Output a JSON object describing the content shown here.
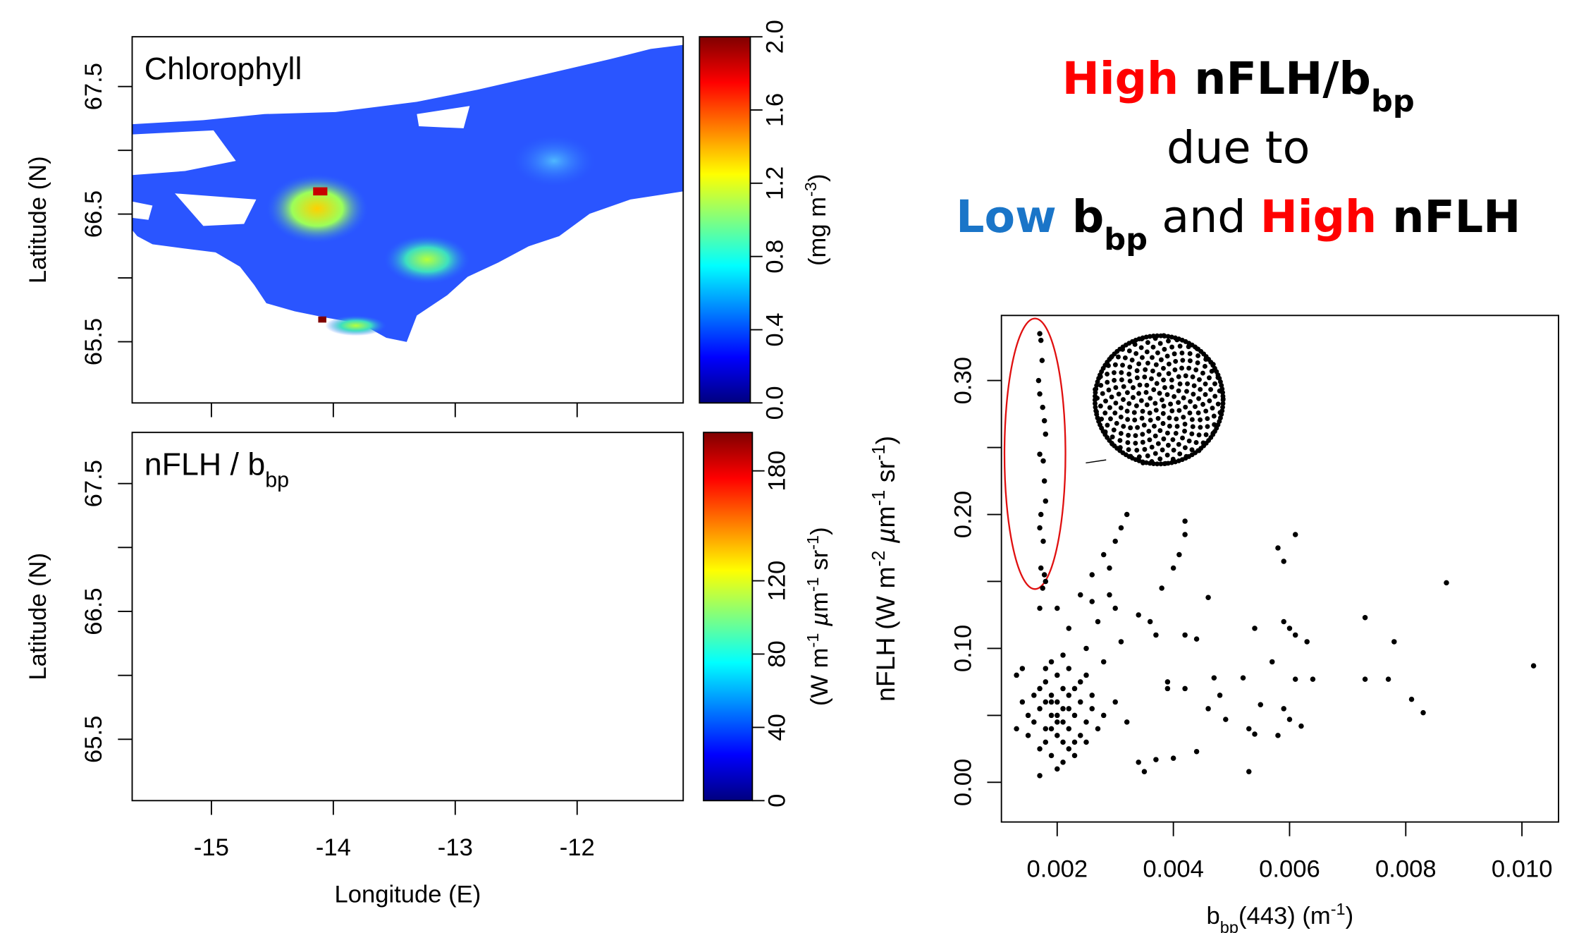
{
  "headline": [
    [
      {
        "text": "High",
        "color": "#ff0000",
        "bold": true
      },
      {
        "text": " nFLH/b",
        "bold": true
      },
      {
        "text": "bp",
        "sub": true,
        "bold": true
      }
    ],
    [
      {
        "text": "due to"
      }
    ],
    [
      {
        "text": "Low",
        "color": "#1a75c8",
        "bold": true
      },
      {
        "text": " b",
        "bold": true
      },
      {
        "text": "bp",
        "sub": true,
        "bold": true
      },
      {
        "text": " and "
      },
      {
        "text": "High",
        "color": "#ff0000",
        "bold": true
      },
      {
        "text": " nFLH",
        "bold": true
      }
    ]
  ],
  "chart_data": [
    {
      "type": "map",
      "title": [
        {
          "text": "Chlorophyll"
        }
      ],
      "ylabel": [
        {
          "text": "Latitude (N)"
        }
      ],
      "xlim": [
        -15.65,
        -11.13
      ],
      "xticks": [
        -15,
        -14,
        -13,
        -12
      ],
      "xtick_labels": false,
      "ylim": [
        65.02,
        67.89
      ],
      "yticks": [
        65.5,
        66.5,
        67.5
      ],
      "yminorticks": [
        66,
        67
      ],
      "colorbar": {
        "lim": [
          0,
          2
        ],
        "ticks": [
          {
            "value": 0,
            "label": "0.0"
          },
          0.4,
          0.8,
          1.2,
          1.6,
          {
            "value": 2,
            "label": "2.0"
          }
        ],
        "label": [
          {
            "text": "(mg m"
          },
          {
            "text": "-3",
            "sup": true
          },
          {
            "text": ")"
          }
        ]
      }
    },
    {
      "type": "map",
      "title": [
        {
          "text": "nFLH / b"
        },
        {
          "text": "bp",
          "sub": true
        }
      ],
      "ylabel": [
        {
          "text": "Latitude (N)"
        }
      ],
      "xlabel": [
        {
          "text": "Longitude (E)"
        }
      ],
      "xlim": [
        -15.65,
        -11.13
      ],
      "xticks": [
        -15,
        -14,
        -13,
        -12
      ],
      "xtick_labels": true,
      "ylim": [
        65.02,
        67.9
      ],
      "yticks": [
        65.5,
        66.5,
        67.5
      ],
      "yminorticks": [
        66,
        67
      ],
      "colorbar": {
        "lim": [
          0,
          201
        ],
        "ticks": [
          0,
          40,
          80,
          120,
          180
        ],
        "label": [
          {
            "text": "(W m"
          },
          {
            "text": "-1",
            "sup": true
          },
          {
            "text": " µ",
            "italic": true
          },
          {
            "text": "m"
          },
          {
            "text": "-1",
            "sup": true
          },
          {
            "text": " sr"
          },
          {
            "text": "-1",
            "sup": true
          },
          {
            "text": ")"
          }
        ]
      }
    },
    {
      "type": "scatter",
      "xlabel": [
        {
          "text": "b"
        },
        {
          "text": "bp",
          "sub": true
        },
        {
          "text": "(443) (m"
        },
        {
          "text": "-1",
          "sup": true
        },
        {
          "text": ")"
        }
      ],
      "ylabel": [
        {
          "text": "nFLH (W m"
        },
        {
          "text": "-2",
          "sup": true
        },
        {
          "text": " µ",
          "italic": true
        },
        {
          "text": "m"
        },
        {
          "text": "-1",
          "sup": true
        },
        {
          "text": " sr"
        },
        {
          "text": "-1",
          "sup": true
        },
        {
          "text": ")"
        }
      ],
      "xlim": [
        0.00104,
        0.01063
      ],
      "xticks": [
        0.002,
        0.004,
        0.006,
        0.008,
        {
          "value": 0.01,
          "label": "0.010"
        }
      ],
      "ylim": [
        -0.0296,
        0.3486
      ],
      "yticks": [
        {
          "value": 0,
          "label": "0.00"
        },
        {
          "value": 0.1,
          "label": "0.10"
        },
        {
          "value": 0.2,
          "label": "0.20"
        },
        {
          "value": 0.3,
          "label": "0.30"
        }
      ],
      "yminorticks": [
        0.05,
        0.15,
        0.25
      ],
      "color": "#000000",
      "x": [
        0.0017,
        0.00172,
        0.00174,
        0.00168,
        0.0017,
        0.00175,
        0.00178,
        0.0018,
        0.0017,
        0.00176,
        0.00178,
        0.0018,
        0.00172,
        0.0017,
        0.00176,
        0.00172,
        0.00178,
        0.0018,
        0.00175,
        0.0017,
        0.0032,
        0.0031,
        0.003,
        0.0028,
        0.0029,
        0.0026,
        0.0042,
        0.0042,
        0.0041,
        0.004,
        0.0061,
        0.0058,
        0.0059,
        0.0087,
        0.0038,
        0.0046,
        0.0073,
        0.0034,
        0.0036,
        0.0037,
        0.0042,
        0.0044,
        0.0054,
        0.0059,
        0.006,
        0.0061,
        0.0063,
        0.0078,
        0.0102,
        0.0057,
        0.0047,
        0.0052,
        0.0039,
        0.0039,
        0.0042,
        0.0048,
        0.0055,
        0.0061,
        0.0064,
        0.0073,
        0.0077,
        0.0081,
        0.0083,
        0.0046,
        0.0053,
        0.0054,
        0.0049,
        0.0059,
        0.006,
        0.0062,
        0.0058,
        0.0044,
        0.0053,
        0.0037,
        0.0035,
        0.004,
        0.0034,
        0.0032,
        0.003,
        0.0028,
        0.0025,
        0.0027,
        0.003,
        0.0029,
        0.0024,
        0.0022,
        0.0026,
        0.0031,
        0.002,
        0.0014,
        0.0013,
        0.0013,
        0.0017,
        0.0018,
        0.0019,
        0.002,
        0.0021,
        0.0022,
        0.0019,
        0.002,
        0.0021,
        0.0023,
        0.0017,
        0.0018,
        0.0022,
        0.0024,
        0.002,
        0.0019,
        0.0021,
        0.0016,
        0.0015,
        0.0023,
        0.0025,
        0.0026,
        0.0024,
        0.0022,
        0.0018,
        0.0017,
        0.0019,
        0.0021,
        0.0023,
        0.002,
        0.0025,
        0.0027,
        0.0028,
        0.0018,
        0.0016,
        0.002,
        0.0021,
        0.0019,
        0.002,
        0.0022,
        0.0023,
        0.0024,
        0.0019,
        0.0021,
        0.0018,
        0.0022,
        0.0017,
        0.0026,
        0.0025,
        0.0015,
        0.0014
      ],
      "values": [
        0.335,
        0.33,
        0.315,
        0.3,
        0.29,
        0.28,
        0.27,
        0.26,
        0.245,
        0.24,
        0.225,
        0.21,
        0.2,
        0.19,
        0.18,
        0.16,
        0.155,
        0.15,
        0.145,
        0.13,
        0.2,
        0.19,
        0.18,
        0.17,
        0.16,
        0.155,
        0.195,
        0.185,
        0.17,
        0.16,
        0.185,
        0.175,
        0.165,
        0.149,
        0.145,
        0.138,
        0.123,
        0.125,
        0.12,
        0.11,
        0.11,
        0.107,
        0.115,
        0.12,
        0.115,
        0.11,
        0.105,
        0.105,
        0.087,
        0.09,
        0.078,
        0.078,
        0.075,
        0.07,
        0.07,
        0.065,
        0.058,
        0.077,
        0.077,
        0.077,
        0.077,
        0.062,
        0.052,
        0.055,
        0.04,
        0.036,
        0.047,
        0.055,
        0.047,
        0.042,
        0.035,
        0.023,
        0.008,
        0.017,
        0.008,
        0.018,
        0.015,
        0.045,
        0.06,
        0.09,
        0.1,
        0.12,
        0.13,
        0.14,
        0.14,
        0.115,
        0.135,
        0.105,
        0.13,
        0.085,
        0.08,
        0.04,
        0.005,
        0.04,
        0.05,
        0.06,
        0.045,
        0.055,
        0.065,
        0.035,
        0.07,
        0.05,
        0.055,
        0.03,
        0.04,
        0.06,
        0.08,
        0.09,
        0.095,
        0.045,
        0.035,
        0.03,
        0.045,
        0.055,
        0.075,
        0.085,
        0.075,
        0.025,
        0.02,
        0.015,
        0.02,
        0.01,
        0.03,
        0.04,
        0.05,
        0.085,
        0.065,
        0.05,
        0.055,
        0.04,
        0.045,
        0.065,
        0.07,
        0.035,
        0.06,
        0.03,
        0.06,
        0.025,
        0.07,
        0.065,
        0.08,
        0.05,
        0.06
      ]
    }
  ]
}
